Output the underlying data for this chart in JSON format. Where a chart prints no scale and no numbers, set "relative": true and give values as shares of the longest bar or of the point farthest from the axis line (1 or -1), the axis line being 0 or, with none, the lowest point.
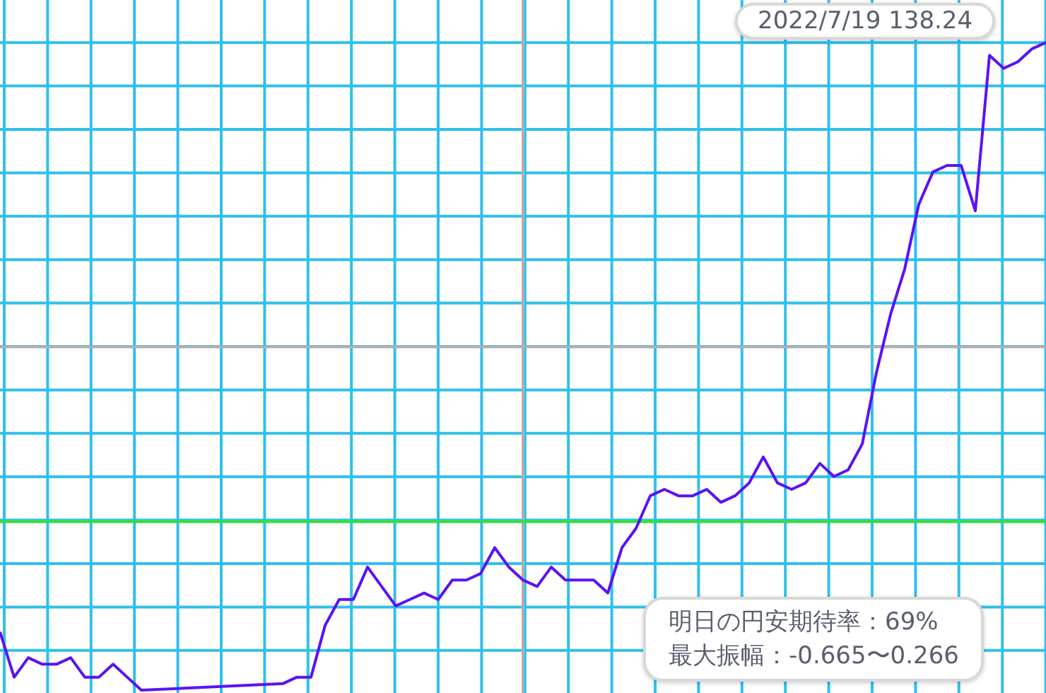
{
  "chart_data": {
    "type": "line",
    "relative": true,
    "grid": true,
    "categories": [
      null,
      null,
      null,
      null,
      null,
      null,
      null,
      null,
      null,
      null,
      null,
      null,
      null,
      null,
      null,
      null,
      null,
      null,
      null,
      null,
      null,
      null,
      null,
      null,
      null,
      null,
      null,
      null,
      null,
      null,
      null,
      null,
      null,
      null,
      null,
      null,
      null,
      null,
      null,
      null,
      null,
      null,
      null,
      null,
      null,
      null,
      null,
      null,
      null,
      null,
      null,
      null,
      null,
      null,
      null,
      null,
      null,
      null,
      null,
      null,
      null,
      null,
      null,
      null,
      null,
      null,
      null,
      null,
      null,
      null,
      null,
      null,
      null,
      null,
      null
    ],
    "series": [
      {
        "color": "#5b12f5",
        "values": [
          0.09,
          0.02,
          0.05,
          0.04,
          0.04,
          0.05,
          0.02,
          0.02,
          0.04,
          0.02,
          0.0,
          null,
          null,
          null,
          null,
          null,
          null,
          null,
          null,
          null,
          0.01,
          0.02,
          0.02,
          0.1,
          0.14,
          0.14,
          0.19,
          0.16,
          0.13,
          0.14,
          0.15,
          0.14,
          0.17,
          0.17,
          0.18,
          0.22,
          0.19,
          0.17,
          0.16,
          0.19,
          0.17,
          0.17,
          0.17,
          0.15,
          0.22,
          0.25,
          0.3,
          0.31,
          0.3,
          0.3,
          0.31,
          0.29,
          0.3,
          0.32,
          0.36,
          0.32,
          0.31,
          0.32,
          0.35,
          0.33,
          0.34,
          0.38,
          0.49,
          0.58,
          0.65,
          0.75,
          0.8,
          0.81,
          0.81,
          0.74,
          0.98,
          0.96,
          0.97,
          0.99,
          1.0
        ]
      }
    ],
    "ref_lines": [
      {
        "axis": "y",
        "value": 0.26,
        "color": "#33e03a"
      },
      {
        "axis": "y",
        "value": 0.53,
        "color": "#b0b0b0"
      }
    ],
    "annotations": [
      "2022/7/19 138.24",
      "明日の円安期待率：69%",
      "最大振幅：-0.665〜0.266"
    ]
  }
}
